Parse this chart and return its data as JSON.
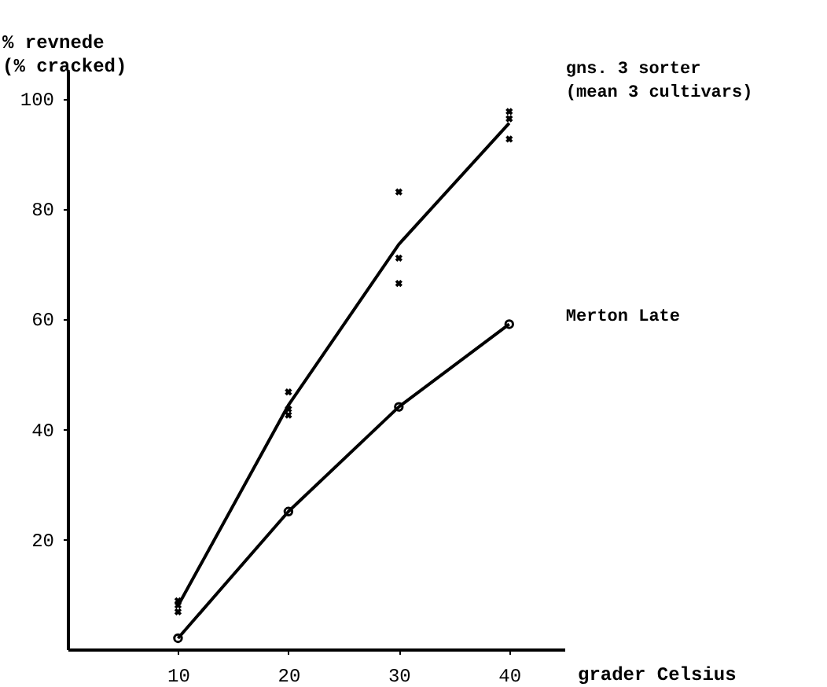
{
  "chart_data": {
    "type": "line",
    "ylabel": "% revnede\n(% cracked)",
    "xlabel": "grader Celsius",
    "x": [
      10,
      20,
      30,
      40
    ],
    "series": [
      {
        "name": "gns. 3 sorter\n(mean 3 cultivars)",
        "color": "#000000",
        "values": [
          7.9,
          44.3,
          73.5,
          95.5
        ],
        "marker": "none"
      },
      {
        "type": "scatter",
        "color": "#000000",
        "x": [
          10,
          10,
          10,
          20,
          20,
          20,
          30,
          30,
          30,
          40,
          40,
          40
        ],
        "values": [
          8.8,
          8,
          6.8,
          46.7,
          43.6,
          42.5,
          83,
          71,
          66.4,
          97.6,
          96.3,
          92.6
        ],
        "marker": "cross"
      },
      {
        "name": "Merton Late",
        "color": "#000000",
        "values": [
          2,
          25,
          44,
          59
        ],
        "marker": "circle"
      }
    ],
    "xlim": [
      0,
      45
    ],
    "xticks": [
      10,
      20,
      30,
      40
    ],
    "ylim": [
      0,
      105
    ],
    "yticks": [
      20,
      40,
      60,
      80,
      100
    ],
    "grid": false
  }
}
